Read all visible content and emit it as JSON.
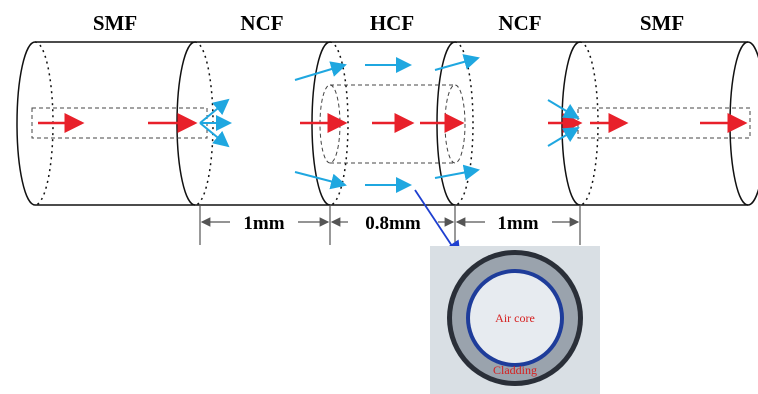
{
  "fibers": [
    {
      "label": "SMF"
    },
    {
      "label": "NCF"
    },
    {
      "label": "HCF"
    },
    {
      "label": "NCF"
    },
    {
      "label": "SMF"
    }
  ],
  "dimensions": [
    "1mm",
    "0.8mm",
    "1mm"
  ],
  "inset": {
    "core_label": "Air core",
    "cladding_label": "Cladding"
  }
}
